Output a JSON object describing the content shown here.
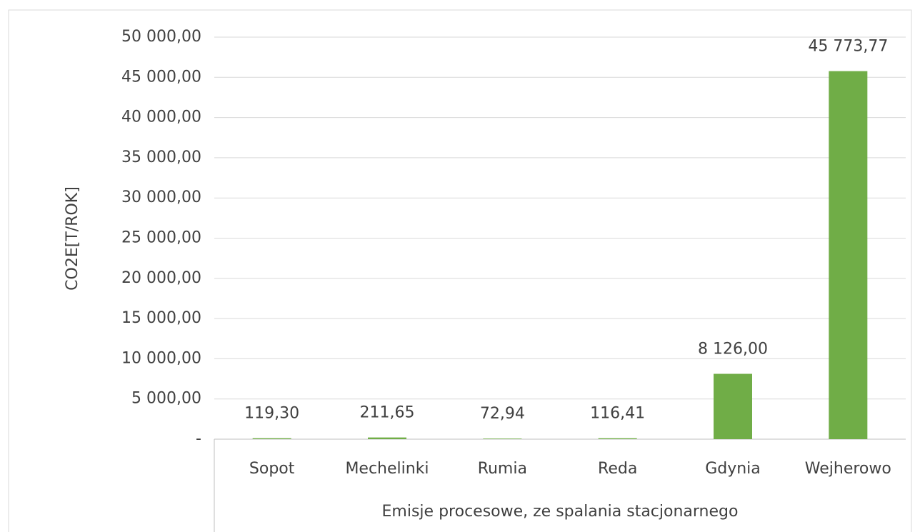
{
  "chart_data": {
    "type": "bar",
    "y_label": "CO2E[T/ROK]",
    "x_label": "Emisje procesowe, ze spalania stacjonarnego",
    "categories": [
      "Sopot",
      "Mechelinki",
      "Rumia",
      "Reda",
      "Gdynia",
      "Wejherowo"
    ],
    "values": [
      119.3,
      211.65,
      72.94,
      116.41,
      8126.0,
      45773.77
    ],
    "value_labels": [
      "119,30",
      "211,65",
      "72,94",
      "116,41",
      "8 126,00",
      "45 773,77"
    ],
    "color": "#70ad47",
    "ylim": [
      0,
      50000
    ],
    "yticks": [
      {
        "value": 0,
        "label": "-"
      },
      {
        "value": 5000,
        "label": "5 000,00"
      },
      {
        "value": 10000,
        "label": "10 000,00"
      },
      {
        "value": 15000,
        "label": "15 000,00"
      },
      {
        "value": 20000,
        "label": "20 000,00"
      },
      {
        "value": 25000,
        "label": "25 000,00"
      },
      {
        "value": 30000,
        "label": "30 000,00"
      },
      {
        "value": 35000,
        "label": "35 000,00"
      },
      {
        "value": 40000,
        "label": "40 000,00"
      },
      {
        "value": 45000,
        "label": "45 000,00"
      },
      {
        "value": 50000,
        "label": "50 000,00"
      }
    ],
    "grid": true
  }
}
